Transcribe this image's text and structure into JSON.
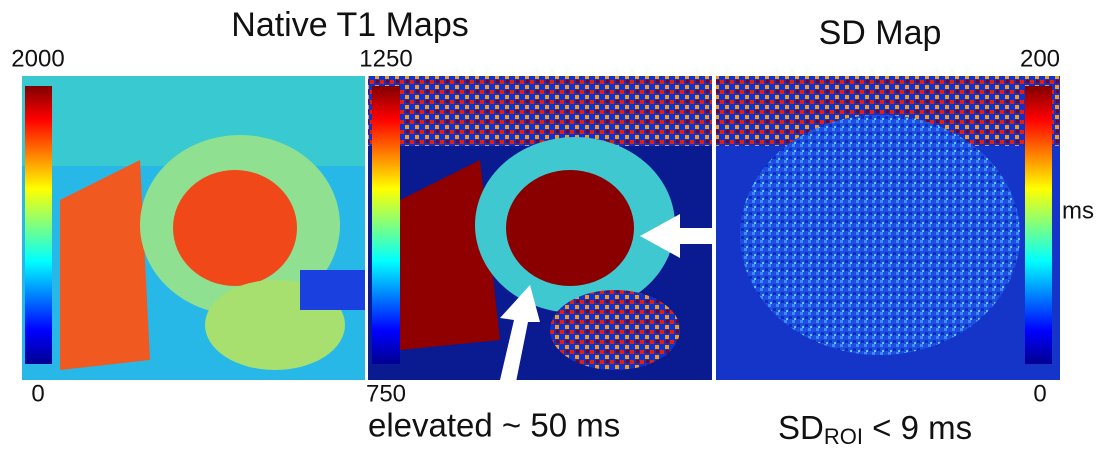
{
  "titles": [
    "Native T1 Maps",
    "SD Map"
  ],
  "colorbars": [
    {
      "max": 2000,
      "min": 0
    },
    {
      "max": 1250,
      "min": 750
    },
    {
      "max": 200,
      "min": 0,
      "unit": "ms"
    }
  ],
  "annotations": {
    "elevated": "elevated ~ 50 ms",
    "sd": {
      "base": "SD",
      "subscript": "ROI",
      "rest": " < 9 ms"
    }
  }
}
